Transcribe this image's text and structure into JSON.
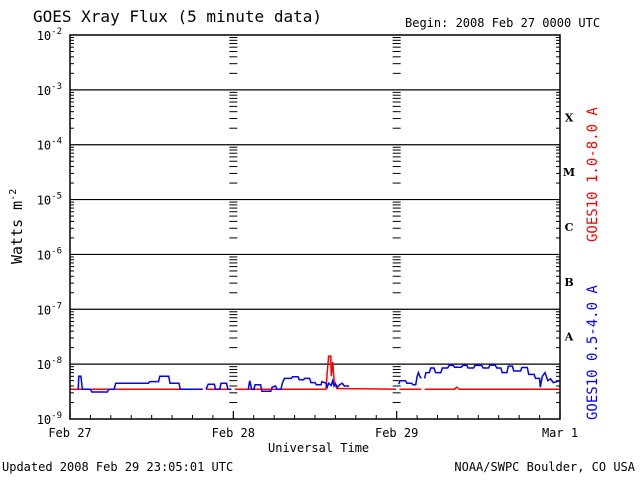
{
  "page": {
    "title": "GOES Xray Flux (5 minute data)",
    "begin": "Begin:  2008 Feb 27 0000 UTC",
    "updated": "Updated 2008 Feb 29 23:05:01 UTC",
    "credit": "NOAA/SWPC Boulder, CO USA"
  },
  "chart_data": {
    "type": "line",
    "title": "GOES Xray Flux (5 minute data)",
    "xlabel": "Universal Time",
    "ylabel": "Watts m-2",
    "ylabel_text": "Watts m",
    "ylabel_sup": "-2",
    "y_scale": "log",
    "ylim": [
      1e-09,
      0.01
    ],
    "xlim": [
      0,
      72
    ],
    "x_unit": "hours since 2008 Feb 27 0000 UTC",
    "x_ticks": [
      {
        "x": 0,
        "label": "Feb 27"
      },
      {
        "x": 24,
        "label": "Feb 28"
      },
      {
        "x": 48,
        "label": "Feb 29"
      },
      {
        "x": 72,
        "label": "Mar 1"
      }
    ],
    "y_ticks": [
      {
        "exp": -9,
        "label": "10",
        "sup": "-9"
      },
      {
        "exp": -8,
        "label": "10",
        "sup": "-8"
      },
      {
        "exp": -7,
        "label": "10",
        "sup": "-7"
      },
      {
        "exp": -6,
        "label": "10",
        "sup": "-6"
      },
      {
        "exp": -5,
        "label": "10",
        "sup": "-5"
      },
      {
        "exp": -4,
        "label": "10",
        "sup": "-4"
      },
      {
        "exp": -3,
        "label": "10",
        "sup": "-3"
      },
      {
        "exp": -2,
        "label": "10",
        "sup": "-2"
      }
    ],
    "flare_classes": [
      {
        "label": "A",
        "exp": -8
      },
      {
        "label": "B",
        "exp": -7
      },
      {
        "label": "C",
        "exp": -6
      },
      {
        "label": "M",
        "exp": -5
      },
      {
        "label": "X",
        "exp": -4
      }
    ],
    "grid": true,
    "series": [
      {
        "name": "GOES10 1.0-8.0 A",
        "color": "#ff0000",
        "points": [
          [
            0,
            3.5e-09
          ],
          [
            19.5,
            3.5e-09
          ],
          [
            19.5,
            null
          ],
          [
            20,
            3.5e-09
          ],
          [
            23.7,
            3.5e-09
          ],
          [
            23.7,
            null
          ],
          [
            24.2,
            3.5e-09
          ],
          [
            37.6,
            3.5e-09
          ],
          [
            37.8,
            7e-09
          ],
          [
            38.0,
            1.4e-08
          ],
          [
            38.3,
            1.4e-08
          ],
          [
            38.4,
            6e-09
          ],
          [
            38.6,
            1.1e-08
          ],
          [
            38.8,
            5e-09
          ],
          [
            39.2,
            3.6e-09
          ],
          [
            47.9,
            3.5e-09
          ],
          [
            47.9,
            null
          ],
          [
            48.4,
            3.5e-09
          ],
          [
            51.6,
            3.5e-09
          ],
          [
            51.6,
            null
          ],
          [
            52.1,
            3.5e-09
          ],
          [
            56.5,
            3.5e-09
          ],
          [
            56.8,
            3.8e-09
          ],
          [
            57.2,
            3.5e-09
          ],
          [
            72,
            3.5e-09
          ]
        ]
      },
      {
        "name": "GOES10 0.5-4.0 A",
        "color": "#0000ff",
        "points": [
          [
            1.2,
            3.5e-09
          ],
          [
            1.3,
            6e-09
          ],
          [
            1.6,
            6e-09
          ],
          [
            1.8,
            3.5e-09
          ],
          [
            3.0,
            3.5e-09
          ],
          [
            3.2,
            3.1e-09
          ],
          [
            5.5,
            3.1e-09
          ],
          [
            5.7,
            3.5e-09
          ],
          [
            6.5,
            3.5e-09
          ],
          [
            6.7,
            4.5e-09
          ],
          [
            11.5,
            4.5e-09
          ],
          [
            11.7,
            4.8e-09
          ],
          [
            13.0,
            4.8e-09
          ],
          [
            13.2,
            6e-09
          ],
          [
            14.5,
            6e-09
          ],
          [
            14.7,
            4.5e-09
          ],
          [
            16.0,
            4.5e-09
          ],
          [
            16.2,
            3.5e-09
          ],
          [
            19.5,
            3.5e-09
          ],
          [
            19.5,
            null
          ],
          [
            20.0,
            3.5e-09
          ],
          [
            20.3,
            4.3e-09
          ],
          [
            21.2,
            4.3e-09
          ],
          [
            21.4,
            3.5e-09
          ],
          [
            22.0,
            3.5e-09
          ],
          [
            22.2,
            4.5e-09
          ],
          [
            23.0,
            4.5e-09
          ],
          [
            23.2,
            3.5e-09
          ],
          [
            23.7,
            3.5e-09
          ],
          [
            23.7,
            null
          ],
          [
            26.2,
            3.5e-09
          ],
          [
            26.4,
            5e-09
          ],
          [
            26.7,
            3.5e-09
          ],
          [
            27.0,
            3.5e-09
          ],
          [
            27.2,
            4.2e-09
          ],
          [
            28.0,
            4.2e-09
          ],
          [
            28.2,
            3.2e-09
          ],
          [
            29.5,
            3.2e-09
          ],
          [
            29.7,
            3.8e-09
          ],
          [
            30.2,
            4e-09
          ],
          [
            30.4,
            3.5e-09
          ],
          [
            31.0,
            3.5e-09
          ],
          [
            31.2,
            4.5e-09
          ],
          [
            31.5,
            5.5e-09
          ],
          [
            32.5,
            5.5e-09
          ],
          [
            32.7,
            5.9e-09
          ],
          [
            33.5,
            5.9e-09
          ],
          [
            33.7,
            5.2e-09
          ],
          [
            34.3,
            5.2e-09
          ],
          [
            34.5,
            5.5e-09
          ],
          [
            35.2,
            5.5e-09
          ],
          [
            35.4,
            4.6e-09
          ],
          [
            36.0,
            4.6e-09
          ],
          [
            36.2,
            4.2e-09
          ],
          [
            36.9,
            4.2e-09
          ],
          [
            37.0,
            4.8e-09
          ],
          [
            37.6,
            4.5e-09
          ],
          [
            37.8,
            3.8e-09
          ],
          [
            38.0,
            4.5e-09
          ],
          [
            38.4,
            4.1e-09
          ],
          [
            38.6,
            5e-09
          ],
          [
            38.8,
            4e-09
          ],
          [
            39.0,
            4.4e-09
          ],
          [
            39.3,
            3.8e-09
          ],
          [
            39.6,
            4.2e-09
          ],
          [
            40.0,
            4.5e-09
          ],
          [
            40.3,
            4e-09
          ],
          [
            41.0,
            4e-09
          ],
          [
            41.0,
            null
          ],
          [
            48.3,
            4.3e-09
          ],
          [
            48.5,
            5e-09
          ],
          [
            49.3,
            5e-09
          ],
          [
            49.5,
            4.5e-09
          ],
          [
            50.2,
            4.5e-09
          ],
          [
            50.4,
            4.2e-09
          ],
          [
            50.8,
            4.2e-09
          ],
          [
            51.0,
            6e-09
          ],
          [
            51.2,
            7e-09
          ],
          [
            51.4,
            6e-09
          ],
          [
            51.6,
            5.5e-09
          ],
          [
            51.6,
            null
          ],
          [
            52.1,
            5.5e-09
          ],
          [
            52.3,
            7e-09
          ],
          [
            52.8,
            7e-09
          ],
          [
            53.0,
            8.5e-09
          ],
          [
            53.5,
            8.5e-09
          ],
          [
            53.7,
            7e-09
          ],
          [
            54.5,
            7e-09
          ],
          [
            54.7,
            8.5e-09
          ],
          [
            55.5,
            8.5e-09
          ],
          [
            55.7,
            9.5e-09
          ],
          [
            56.3,
            9.5e-09
          ],
          [
            56.5,
            8.8e-09
          ],
          [
            57.5,
            8.8e-09
          ],
          [
            57.7,
            9.5e-09
          ],
          [
            58.3,
            9.5e-09
          ],
          [
            58.5,
            8.5e-09
          ],
          [
            59.3,
            8.5e-09
          ],
          [
            59.5,
            9.5e-09
          ],
          [
            60.5,
            9.5e-09
          ],
          [
            60.7,
            8.5e-09
          ],
          [
            61.5,
            8.5e-09
          ],
          [
            61.7,
            9.6e-09
          ],
          [
            62.5,
            9.6e-09
          ],
          [
            62.7,
            8.5e-09
          ],
          [
            63.3,
            8.5e-09
          ],
          [
            63.5,
            7e-09
          ],
          [
            64.2,
            7e-09
          ],
          [
            64.4,
            9.2e-09
          ],
          [
            65.0,
            9.2e-09
          ],
          [
            65.2,
            7.5e-09
          ],
          [
            66.2,
            7.5e-09
          ],
          [
            66.4,
            8.7e-09
          ],
          [
            67.2,
            8.7e-09
          ],
          [
            67.4,
            6.5e-09
          ],
          [
            68.2,
            6.5e-09
          ],
          [
            68.4,
            5.5e-09
          ],
          [
            69.0,
            5.5e-09
          ],
          [
            69.1,
            3.8e-09
          ],
          [
            69.4,
            6e-09
          ],
          [
            69.8,
            7e-09
          ],
          [
            70.2,
            5e-09
          ],
          [
            70.6,
            5.4e-09
          ],
          [
            71.0,
            4.6e-09
          ],
          [
            72.0,
            5e-09
          ]
        ]
      }
    ]
  }
}
